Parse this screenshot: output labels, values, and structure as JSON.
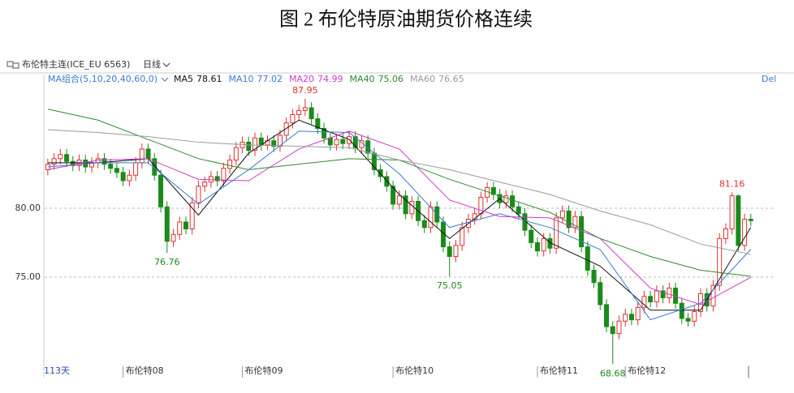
{
  "chart_data": {
    "type": "candlestick",
    "title": "图 2 布伦特原油期货价格连续",
    "symbol": "布伦特主连(ICE_EU 6563)",
    "period": "日线",
    "ma_header": "MA组合(5,10,20,40,60,0)",
    "corner_label": "Del",
    "bar_count_label": "113天",
    "up_color": "#e03030",
    "down_color": "#1a8a1a",
    "open": [
      82.8,
      83.2,
      83.6,
      83.9,
      83.4,
      83.1,
      83.5,
      83.0,
      83.3,
      83.6,
      83.2,
      82.9,
      82.6,
      82.0,
      82.4,
      83.3,
      84.3,
      83.6,
      82.4,
      80.1,
      77.6,
      78.1,
      79.0,
      78.5,
      80.4,
      81.6,
      81.9,
      82.3,
      82.0,
      82.9,
      83.5,
      84.4,
      84.8,
      84.2,
      85.1,
      84.6,
      84.9,
      84.5,
      85.3,
      86.2,
      86.8,
      87.1,
      87.3,
      86.5,
      85.8,
      85.1,
      84.6,
      85.0,
      84.7,
      85.2,
      84.4,
      84.9,
      84.0,
      82.8,
      82.3,
      81.6,
      80.3,
      80.9,
      79.6,
      80.5,
      79.1,
      78.6,
      80.1,
      79.0,
      77.2,
      76.5,
      77.3,
      78.6,
      79.2,
      79.6,
      80.8,
      81.5,
      81.0,
      80.4,
      80.9,
      80.1,
      79.6,
      78.4,
      77.5,
      76.9,
      77.8,
      77.1,
      79.3,
      79.8,
      78.6,
      79.4,
      77.2,
      75.5,
      74.6,
      73.0,
      71.4,
      70.9,
      71.8,
      72.3,
      71.9,
      72.8,
      73.6,
      73.2,
      74.0,
      73.5,
      74.2,
      73.1,
      72.0,
      71.8,
      72.5,
      73.8,
      72.9,
      74.4,
      77.8,
      78.5,
      80.9,
      77.3,
      79.2
    ],
    "high": [
      83.6,
      84.0,
      84.3,
      84.3,
      83.8,
      83.9,
      83.9,
      83.7,
      84.0,
      84.0,
      83.6,
      83.3,
      83.0,
      82.8,
      83.7,
      84.7,
      84.7,
      84.0,
      82.8,
      80.5,
      78.5,
      79.4,
      79.4,
      80.8,
      82.0,
      82.3,
      82.7,
      82.7,
      83.3,
      83.9,
      84.8,
      85.2,
      85.2,
      85.5,
      85.5,
      85.3,
      85.3,
      85.7,
      86.6,
      87.2,
      87.5,
      87.95,
      87.7,
      86.9,
      86.2,
      85.5,
      85.4,
      85.4,
      85.6,
      85.6,
      85.3,
      85.3,
      84.4,
      83.2,
      82.7,
      82.0,
      81.3,
      81.3,
      80.9,
      80.9,
      79.5,
      80.5,
      80.5,
      79.4,
      77.6,
      77.7,
      79.0,
      79.6,
      80.0,
      81.2,
      81.9,
      81.9,
      81.4,
      81.3,
      81.3,
      80.5,
      80.0,
      78.8,
      77.9,
      78.2,
      78.2,
      79.7,
      80.2,
      80.2,
      79.8,
      79.8,
      77.6,
      75.9,
      75.0,
      73.4,
      71.8,
      72.2,
      72.7,
      72.7,
      73.2,
      74.0,
      74.0,
      74.4,
      74.4,
      74.6,
      74.6,
      73.5,
      72.4,
      72.9,
      74.2,
      74.2,
      74.8,
      78.2,
      78.9,
      81.16,
      81.0,
      79.6,
      79.6
    ],
    "low": [
      82.4,
      82.8,
      83.2,
      83.0,
      82.7,
      82.7,
      82.6,
      82.6,
      82.9,
      82.8,
      82.5,
      82.2,
      81.6,
      81.6,
      82.0,
      82.9,
      83.2,
      82.0,
      79.7,
      76.76,
      77.2,
      77.7,
      78.1,
      78.1,
      80.0,
      81.2,
      81.5,
      81.6,
      81.6,
      82.5,
      83.1,
      84.0,
      83.8,
      83.8,
      84.2,
      84.2,
      84.1,
      84.1,
      84.9,
      85.8,
      86.4,
      86.7,
      86.1,
      85.4,
      84.7,
      84.2,
      84.2,
      84.3,
      84.3,
      84.0,
      84.0,
      83.6,
      82.4,
      81.9,
      81.2,
      79.9,
      79.9,
      79.2,
      79.2,
      78.7,
      78.2,
      78.2,
      78.6,
      76.8,
      75.05,
      76.1,
      76.9,
      78.2,
      78.8,
      79.2,
      80.4,
      80.6,
      80.0,
      80.0,
      79.7,
      79.2,
      78.0,
      77.1,
      76.5,
      76.5,
      76.7,
      76.7,
      78.9,
      78.2,
      78.2,
      76.8,
      75.1,
      74.2,
      72.6,
      71.0,
      68.68,
      70.5,
      71.4,
      71.5,
      71.5,
      72.4,
      72.8,
      72.8,
      73.1,
      73.1,
      72.7,
      71.6,
      71.4,
      71.4,
      72.1,
      72.5,
      72.5,
      74.0,
      77.4,
      78.1,
      76.9,
      76.9,
      78.7
    ],
    "close": [
      83.2,
      83.6,
      83.9,
      83.4,
      83.1,
      83.5,
      83.0,
      83.3,
      83.6,
      83.2,
      82.9,
      82.6,
      82.0,
      82.4,
      83.3,
      84.3,
      83.6,
      82.4,
      80.1,
      77.6,
      78.1,
      79.0,
      78.5,
      80.4,
      81.6,
      81.9,
      82.3,
      82.0,
      82.9,
      83.5,
      84.4,
      84.8,
      84.2,
      85.1,
      84.6,
      84.9,
      84.5,
      85.3,
      86.2,
      86.8,
      87.1,
      87.3,
      86.5,
      85.8,
      85.1,
      84.6,
      85.0,
      84.7,
      85.2,
      84.4,
      84.9,
      84.0,
      82.8,
      82.3,
      81.6,
      80.3,
      80.9,
      79.6,
      80.5,
      79.1,
      78.6,
      80.1,
      79.0,
      77.2,
      76.5,
      77.3,
      78.6,
      79.2,
      79.6,
      80.8,
      81.5,
      81.0,
      80.4,
      80.9,
      80.1,
      79.6,
      78.4,
      77.5,
      76.9,
      77.8,
      77.1,
      79.3,
      79.8,
      78.6,
      79.4,
      77.2,
      75.5,
      74.6,
      73.0,
      71.4,
      70.9,
      71.8,
      72.3,
      71.9,
      72.8,
      73.6,
      73.2,
      74.0,
      73.5,
      74.2,
      73.1,
      72.0,
      71.8,
      72.5,
      73.8,
      72.9,
      74.4,
      77.8,
      78.5,
      80.9,
      77.3,
      79.2,
      79.1
    ],
    "ma_x": [
      0,
      8,
      16,
      24,
      32,
      40,
      48,
      56,
      64,
      72,
      80,
      88,
      96,
      104,
      112
    ],
    "series": [
      {
        "name": "MA5",
        "color": "#111111",
        "values": [
          83.3,
          83.3,
          83.6,
          79.5,
          84.0,
          86.4,
          85.0,
          81.0,
          77.8,
          80.7,
          77.5,
          75.8,
          72.6,
          72.6,
          78.61
        ]
      },
      {
        "name": "MA10",
        "color": "#3a7bd5",
        "values": [
          83.0,
          83.3,
          83.3,
          80.3,
          82.8,
          85.6,
          85.5,
          82.5,
          78.6,
          79.6,
          78.6,
          77.0,
          71.9,
          73.1,
          77.02
        ]
      },
      {
        "name": "MA20",
        "color": "#d23bc8",
        "values": [
          82.8,
          83.5,
          83.6,
          82.1,
          82.0,
          84.3,
          85.6,
          84.3,
          80.6,
          79.4,
          79.3,
          77.8,
          74.2,
          73.0,
          74.99
        ]
      },
      {
        "name": "MA40",
        "color": "#2e8b2e",
        "values": [
          87.2,
          86.4,
          85.0,
          83.6,
          82.8,
          83.2,
          83.6,
          83.5,
          82.1,
          80.9,
          79.7,
          77.8,
          76.5,
          75.5,
          75.06
        ]
      },
      {
        "name": "MA60",
        "color": "#9a9a9a",
        "values": [
          85.7,
          85.5,
          85.2,
          84.8,
          84.6,
          84.5,
          84.4,
          83.5,
          82.8,
          81.9,
          81.0,
          79.8,
          78.8,
          77.4,
          76.65
        ]
      }
    ],
    "xlim": [
      -0.5,
      115.9
    ],
    "xticks": [
      {
        "value": 12,
        "label": "布伦特08"
      },
      {
        "value": 31,
        "label": "布伦特09"
      },
      {
        "value": 55,
        "label": "布伦特10"
      },
      {
        "value": 78,
        "label": "布伦特11"
      },
      {
        "value": 92,
        "label": "布伦特12"
      }
    ],
    "ylim": [
      67.76,
      89.71
    ],
    "yticks": [
      {
        "value": 75,
        "label": "75.00"
      },
      {
        "value": 80,
        "label": "80.00"
      }
    ],
    "grid": true
  }
}
